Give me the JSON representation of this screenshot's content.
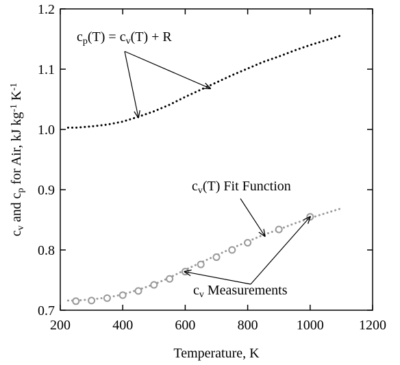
{
  "chart_data": {
    "type": "line",
    "xlabel": "Temperature, K",
    "ylabel": {
      "parts": [
        {
          "t": "c",
          "sub": false
        },
        {
          "t": "v",
          "sub": true
        },
        {
          "t": " and c",
          "sub": false
        },
        {
          "t": "p",
          "sub": true
        },
        {
          "t": " for Air, kJ kg",
          "sub": false
        },
        {
          "t": "-1",
          "sup": true
        },
        {
          "t": " K",
          "sub": false
        },
        {
          "t": "-1",
          "sup": true
        }
      ]
    },
    "xlim": [
      200,
      1200
    ],
    "ylim": [
      0.7,
      1.2
    ],
    "x_ticks": [
      200,
      400,
      600,
      800,
      1000,
      1200
    ],
    "x_tick_labels": [
      "200",
      "400",
      "600",
      "800",
      "1000",
      "1200"
    ],
    "y_ticks": [
      0.7,
      0.8,
      0.9,
      1.0,
      1.1,
      1.2
    ],
    "y_tick_labels": [
      "0.7",
      "0.8",
      "0.9",
      "1.0",
      "1.1",
      "1.2"
    ],
    "grid": false,
    "series": [
      {
        "style": "dotted",
        "color": "#000000",
        "x": [
          225,
          250,
          300,
          350,
          400,
          450,
          500,
          550,
          600,
          650,
          700,
          750,
          800,
          850,
          900,
          950,
          1000,
          1050,
          1100
        ],
        "y": [
          1.003,
          1.003,
          1.005,
          1.008,
          1.013,
          1.021,
          1.03,
          1.041,
          1.054,
          1.066,
          1.078,
          1.09,
          1.101,
          1.112,
          1.121,
          1.131,
          1.14,
          1.148,
          1.156
        ]
      },
      {
        "style": "dotted",
        "color": "#999999",
        "x": [
          225,
          250,
          300,
          350,
          400,
          450,
          500,
          550,
          600,
          650,
          700,
          750,
          800,
          850,
          900,
          950,
          1000,
          1050,
          1100
        ],
        "y": [
          0.716,
          0.716,
          0.718,
          0.721,
          0.726,
          0.734,
          0.743,
          0.754,
          0.767,
          0.779,
          0.791,
          0.803,
          0.814,
          0.825,
          0.834,
          0.844,
          0.853,
          0.861,
          0.869
        ]
      },
      {
        "style": "markers",
        "marker": "open-circle",
        "color": "#999999",
        "x": [
          250,
          300,
          350,
          400,
          450,
          500,
          550,
          600,
          650,
          700,
          750,
          800,
          900,
          1000
        ],
        "y": [
          0.715,
          0.716,
          0.72,
          0.725,
          0.732,
          0.742,
          0.752,
          0.764,
          0.776,
          0.788,
          0.8,
          0.812,
          0.834,
          0.855
        ]
      }
    ],
    "annotations": [
      {
        "key": "cp",
        "parts": [
          {
            "t": "c",
            "sub": false
          },
          {
            "t": "p",
            "sub": true
          },
          {
            "t": "(T) = c",
            "sub": false
          },
          {
            "t": "v",
            "sub": true
          },
          {
            "t": "(T) + R",
            "sub": false
          }
        ],
        "arrow_targets": [
          [
            450,
            1.02
          ],
          [
            680,
            1.068
          ]
        ]
      },
      {
        "key": "fit",
        "parts": [
          {
            "t": "c",
            "sub": false
          },
          {
            "t": "v",
            "sub": true
          },
          {
            "t": "(T) Fit Function",
            "sub": false
          }
        ],
        "arrow_targets": [
          [
            855,
            0.823
          ]
        ]
      },
      {
        "key": "meas",
        "parts": [
          {
            "t": "c",
            "sub": false
          },
          {
            "t": "v",
            "sub": true
          },
          {
            "t": " Measurements",
            "sub": false
          }
        ],
        "arrow_targets": [
          [
            598,
            0.764
          ],
          [
            1000,
            0.855
          ]
        ]
      }
    ]
  }
}
